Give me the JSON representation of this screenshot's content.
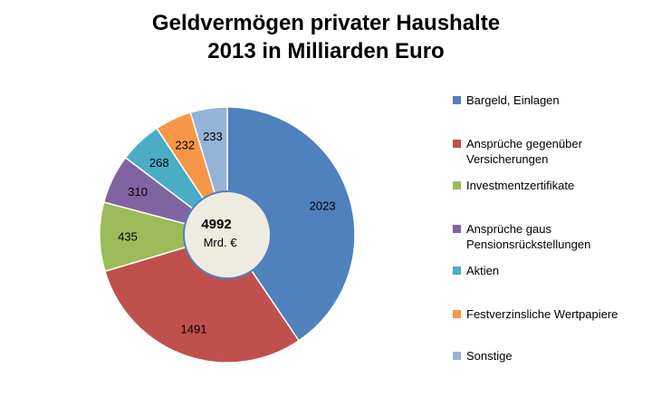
{
  "title_lines": [
    "Geldvermögen privater Haushalte",
    "2013 in Milliarden Euro"
  ],
  "center_label": {
    "total": "4992",
    "unit": "Mrd. €"
  },
  "chart_data": {
    "type": "pie",
    "title": "Geldvermögen privater Haushalte 2013 in Milliarden Euro",
    "categories": [
      "Bargeld, Einlagen",
      "Ansprüche gegenüber\nVersicherungen",
      "Investmentzertifikate",
      "Ansprüche gaus\nPensionsrückstellungen",
      "Aktien",
      "Festverzinsliche Wertpapiere",
      "Sonstige"
    ],
    "values": [
      2023,
      1491,
      435,
      310,
      268,
      232,
      233
    ],
    "colors": [
      "#4F81BD",
      "#C0504D",
      "#9BBB59",
      "#8064A2",
      "#4BACC6",
      "#F79646",
      "#95B3D7"
    ],
    "center_fill": "#EEECE1",
    "legend_position": "right"
  }
}
